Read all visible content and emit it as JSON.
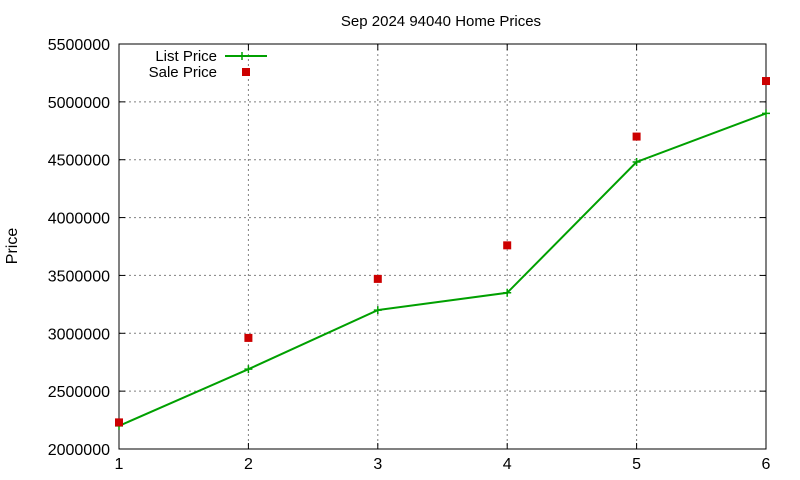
{
  "chart_data": {
    "type": "line",
    "title": "Sep 2024 94040 Home Prices",
    "xlabel": "",
    "ylabel": "Price",
    "x": [
      1,
      2,
      3,
      4,
      5,
      6
    ],
    "xlim": [
      1,
      6
    ],
    "ylim": [
      2000000,
      5500000
    ],
    "x_ticks": [
      "1",
      "2",
      "3",
      "4",
      "5",
      "6"
    ],
    "y_ticks": [
      "2000000",
      "2500000",
      "3000000",
      "3500000",
      "4000000",
      "4500000",
      "5000000",
      "5500000"
    ],
    "grid": true,
    "legend_position": "top-left",
    "series": [
      {
        "name": "List Price",
        "style": "line-with-plus-markers",
        "color": "#00a000",
        "values": [
          2200000,
          2690000,
          3200000,
          3350000,
          4480000,
          4900000
        ]
      },
      {
        "name": "Sale Price",
        "style": "square-markers",
        "color": "#cc0000",
        "values": [
          2230000,
          2960000,
          3470000,
          3760000,
          4700000,
          5180000
        ]
      }
    ]
  }
}
